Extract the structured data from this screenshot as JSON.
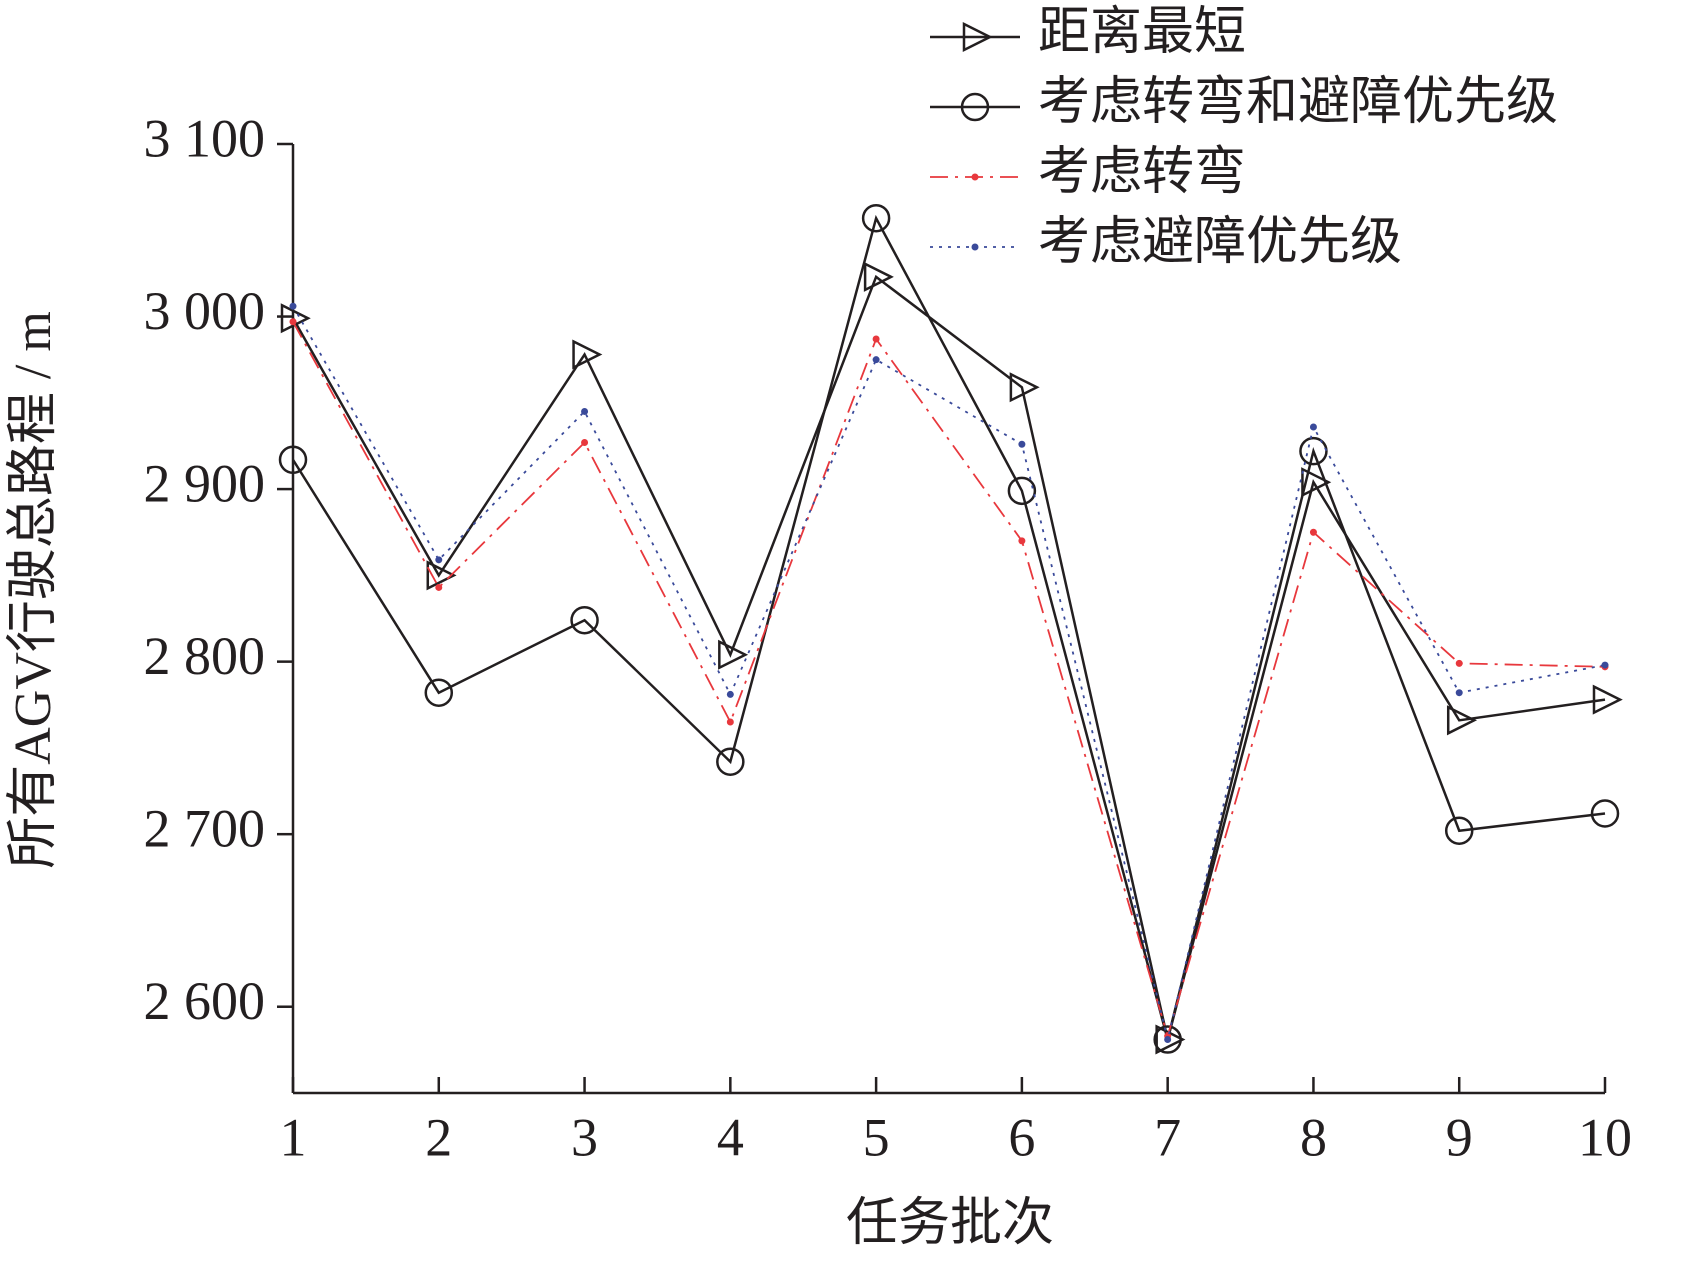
{
  "chart_data": {
    "type": "line",
    "xlabel": "任务批次",
    "ylabel": "所有AGV行驶总路程 / m",
    "x": [
      1,
      2,
      3,
      4,
      5,
      6,
      7,
      8,
      9,
      10
    ],
    "xlim": [
      1,
      10
    ],
    "xticks": [
      1,
      2,
      3,
      4,
      5,
      6,
      7,
      8,
      9,
      10
    ],
    "ylim": [
      2550,
      3100
    ],
    "yticks": [
      {
        "value": 2600,
        "label": "2 600"
      },
      {
        "value": 2700,
        "label": "2 700"
      },
      {
        "value": 2800,
        "label": "2 800"
      },
      {
        "value": 2900,
        "label": "2 900"
      },
      {
        "value": 3000,
        "label": "3 000"
      },
      {
        "value": 3100,
        "label": "3 100"
      }
    ],
    "legend": "upper right",
    "series": [
      {
        "name": "距离最短",
        "color": "#231f20",
        "marker": "triangle",
        "linestyle": "solid",
        "values": [
          2999,
          2850,
          2978,
          2804,
          3023,
          2959,
          2581,
          2904,
          2766,
          2778
        ]
      },
      {
        "name": "考虑转弯和避障优先级",
        "color": "#231f20",
        "marker": "circle",
        "linestyle": "solid",
        "values": [
          2917,
          2782,
          2824,
          2742,
          3057,
          2899,
          2581,
          2922,
          2702,
          2712
        ]
      },
      {
        "name": "考虑转弯",
        "color": "#e8383d",
        "marker": "dot",
        "linestyle": "dashdot",
        "values": [
          2997,
          2843,
          2927,
          2765,
          2987,
          2870,
          2583,
          2875,
          2799,
          2797
        ]
      },
      {
        "name": "考虑避障优先级",
        "color": "#3a4a9a",
        "marker": "dot",
        "linestyle": "dotted",
        "values": [
          3006,
          2859,
          2945,
          2781,
          2975,
          2926,
          2581,
          2936,
          2782,
          2798
        ]
      }
    ]
  }
}
